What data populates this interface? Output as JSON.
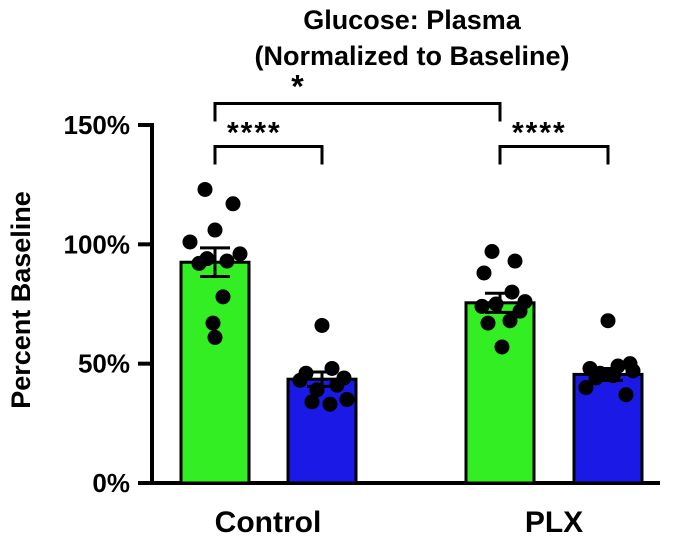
{
  "chart_data": {
    "type": "bar",
    "title_lines": [
      "Glucose: Plasma",
      "(Normalized to Baseline)"
    ],
    "xlabel": "",
    "ylabel": "Percent Baseline",
    "ylim": [
      0,
      150
    ],
    "yticks": [
      {
        "value": 0,
        "label": "0%"
      },
      {
        "value": 50,
        "label": "50%"
      },
      {
        "value": 100,
        "label": "100%"
      },
      {
        "value": 150,
        "label": "150%"
      }
    ],
    "categories": [
      "Control",
      "PLX"
    ],
    "series_colors": {
      "green": "#33ee22",
      "blue": "#1a19e6"
    },
    "bars": [
      {
        "group": "Control",
        "color": "#33ee22",
        "mean": 92.5,
        "sem": 6.0,
        "points": [
          123,
          117,
          106,
          101,
          96,
          94,
          93,
          92,
          78,
          67,
          61
        ]
      },
      {
        "group": "Control",
        "color": "#1a19e6",
        "mean": 43.5,
        "sem": 3.0,
        "points": [
          66,
          48,
          46,
          44,
          43,
          41,
          39,
          35,
          34,
          33
        ]
      },
      {
        "group": "PLX",
        "color": "#33ee22",
        "mean": 75.5,
        "sem": 4.0,
        "points": [
          97,
          93,
          88,
          80,
          76,
          75,
          74,
          72,
          68,
          67,
          57
        ]
      },
      {
        "group": "PLX",
        "color": "#1a19e6",
        "mean": 45.5,
        "sem": 2.5,
        "points": [
          68,
          50,
          49,
          48,
          47,
          46,
          45,
          44,
          40,
          37
        ]
      }
    ],
    "significance": [
      {
        "from_bar": 0,
        "to_bar": 2,
        "label": "*",
        "level": 159
      },
      {
        "from_bar": 0,
        "to_bar": 1,
        "label": "****",
        "level": 141
      },
      {
        "from_bar": 2,
        "to_bar": 3,
        "label": "****",
        "level": 141
      }
    ]
  }
}
